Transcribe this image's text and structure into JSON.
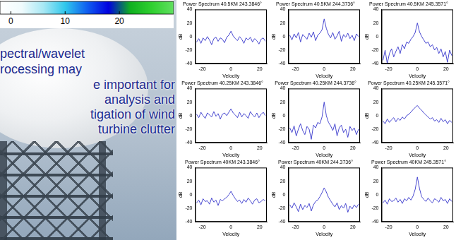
{
  "chart_data": [
    {
      "type": "line",
      "title": "Power Spectrum 40.5KM 243.3846°",
      "xlabel": "Velocity",
      "ylabel": "dB",
      "x": [
        -24,
        -22.5,
        -21,
        -19.5,
        -18,
        -16.5,
        -15,
        -13.5,
        -12,
        -10.5,
        -9,
        -7.5,
        -6,
        -4.5,
        -3,
        -1.5,
        0,
        1.5,
        3,
        4.5,
        6,
        7.5,
        9,
        10.5,
        12,
        13.5,
        15,
        16.5,
        18,
        19.5,
        21,
        22.5,
        24
      ],
      "values": [
        -8,
        -3,
        -10,
        -2,
        -6,
        0,
        -5,
        -12,
        -3,
        -1,
        -7,
        -2,
        -4,
        -9,
        -1,
        2,
        8,
        1,
        -3,
        -6,
        0,
        -4,
        -10,
        -2,
        -5,
        -1,
        -8,
        -3,
        -6,
        -11,
        -4,
        -2,
        -7
      ],
      "color": "#4848d0",
      "xlim": [
        -25,
        25
      ],
      "ylim": [
        -40,
        40
      ],
      "xticks": [
        -20,
        0,
        20
      ],
      "yticks": [
        -40,
        -20,
        0,
        20,
        40
      ],
      "grid": false
    },
    {
      "type": "line",
      "title": "Power Spectrum 40.5KM 244.3736°",
      "xlabel": "Velocity",
      "ylabel": "dB",
      "x": [
        -24,
        -22.5,
        -21,
        -19.5,
        -18,
        -16.5,
        -15,
        -13.5,
        -12,
        -10.5,
        -9,
        -7.5,
        -6,
        -4.5,
        -3,
        -1.5,
        0,
        1.5,
        3,
        4.5,
        6,
        7.5,
        9,
        10.5,
        12,
        13.5,
        15,
        16.5,
        18,
        19.5,
        21,
        22.5,
        24
      ],
      "values": [
        2,
        -5,
        4,
        -2,
        6,
        -8,
        3,
        0,
        -4,
        5,
        -1,
        7,
        -6,
        2,
        5,
        10,
        26,
        12,
        3,
        -2,
        6,
        -4,
        1,
        8,
        -7,
        3,
        -1,
        5,
        -3,
        2,
        -6,
        4,
        0
      ],
      "color": "#4848d0",
      "xlim": [
        -25,
        25
      ],
      "ylim": [
        -40,
        40
      ],
      "xticks": [
        -20,
        0,
        20
      ],
      "yticks": [
        -40,
        -20,
        0,
        20,
        40
      ],
      "grid": false
    },
    {
      "type": "line",
      "title": "Power Spectrum 40.5KM 245.3571°",
      "xlabel": "Velocity",
      "ylabel": "dB",
      "x": [
        -24,
        -22.5,
        -21,
        -19.5,
        -18,
        -16.5,
        -15,
        -13.5,
        -12,
        -10.5,
        -9,
        -7.5,
        -6,
        -4.5,
        -3,
        -1.5,
        0,
        1.5,
        3,
        4.5,
        6,
        7.5,
        9,
        10.5,
        12,
        13.5,
        15,
        16.5,
        18,
        19.5,
        21,
        22.5,
        24
      ],
      "values": [
        -35,
        -20,
        -40,
        -25,
        -18,
        -30,
        -22,
        -15,
        -25,
        -12,
        -18,
        -8,
        -10,
        -4,
        0,
        6,
        20,
        7,
        0,
        -5,
        -10,
        -8,
        -15,
        -12,
        -20,
        -16,
        -25,
        -18,
        -30,
        -22,
        -38,
        -20,
        -28
      ],
      "color": "#4848d0",
      "xlim": [
        -25,
        25
      ],
      "ylim": [
        -40,
        40
      ],
      "xticks": [
        -20,
        0,
        20
      ],
      "yticks": [
        -40,
        -20,
        0,
        20,
        40
      ],
      "grid": false
    },
    {
      "type": "line",
      "title": "Power Spectrum 40.25KM 243.3846°",
      "xlabel": "Velocity",
      "ylabel": "dB",
      "x": [
        -24,
        -22.5,
        -21,
        -19.5,
        -18,
        -16.5,
        -15,
        -13.5,
        -12,
        -10.5,
        -9,
        -7.5,
        -6,
        -4.5,
        -3,
        -1.5,
        0,
        1.5,
        3,
        4.5,
        6,
        7.5,
        9,
        10.5,
        12,
        13.5,
        15,
        16.5,
        18,
        19.5,
        21,
        22.5,
        24
      ],
      "values": [
        2,
        -3,
        5,
        0,
        -4,
        4,
        1,
        -2,
        6,
        -1,
        3,
        -5,
        2,
        4,
        0,
        5,
        10,
        4,
        1,
        -3,
        5,
        -2,
        3,
        0,
        -4,
        6,
        1,
        -2,
        4,
        -3,
        2,
        5,
        0
      ],
      "color": "#4848d0",
      "xlim": [
        -25,
        25
      ],
      "ylim": [
        -40,
        40
      ],
      "xticks": [
        -20,
        0,
        20
      ],
      "yticks": [
        -40,
        -20,
        0,
        20,
        40
      ],
      "grid": false
    },
    {
      "type": "line",
      "title": "Power Spectrum 40.25KM 244.3736°",
      "xlabel": "Velocity",
      "ylabel": "dB",
      "x": [
        -24,
        -22.5,
        -21,
        -19.5,
        -18,
        -16.5,
        -15,
        -13.5,
        -12,
        -10.5,
        -9,
        -7.5,
        -6,
        -4.5,
        -3,
        -1.5,
        0,
        1.5,
        3,
        4.5,
        6,
        7.5,
        9,
        10.5,
        12,
        13.5,
        15,
        16.5,
        18,
        19.5,
        21,
        22.5,
        24
      ],
      "values": [
        -18,
        -25,
        -15,
        -30,
        -20,
        -12,
        -22,
        -28,
        -16,
        -20,
        -35,
        -14,
        -18,
        -10,
        -12,
        -2,
        20,
        0,
        -10,
        -15,
        -22,
        -12,
        -30,
        -18,
        -14,
        -25,
        -20,
        -32,
        -16,
        -22,
        -18,
        -28,
        -20
      ],
      "color": "#4848d0",
      "xlim": [
        -25,
        25
      ],
      "ylim": [
        -40,
        40
      ],
      "xticks": [
        -20,
        0,
        20
      ],
      "yticks": [
        -40,
        -20,
        0,
        20,
        40
      ],
      "grid": false
    },
    {
      "type": "line",
      "title": "Power Spectrum 40.25KM 245.3571°",
      "xlabel": "Velocity",
      "ylabel": "dB",
      "x": [
        -24,
        -22.5,
        -21,
        -19.5,
        -18,
        -16.5,
        -15,
        -13.5,
        -12,
        -10.5,
        -9,
        -7.5,
        -6,
        -4.5,
        -3,
        -1.5,
        0,
        1.5,
        3,
        4.5,
        6,
        7.5,
        9,
        10.5,
        12,
        13.5,
        15,
        16.5,
        18,
        19.5,
        21,
        22.5,
        24
      ],
      "values": [
        -8,
        -12,
        -5,
        -10,
        -6,
        -3,
        -9,
        -4,
        -7,
        -2,
        -5,
        0,
        2,
        5,
        9,
        12,
        15,
        11,
        8,
        4,
        1,
        -2,
        -5,
        -3,
        -8,
        -6,
        -10,
        -4,
        -9,
        -6,
        -12,
        -7,
        -10
      ],
      "color": "#4848d0",
      "xlim": [
        -25,
        25
      ],
      "ylim": [
        -40,
        40
      ],
      "xticks": [
        -20,
        0,
        20
      ],
      "yticks": [
        -40,
        -20,
        0,
        20,
        40
      ],
      "grid": false
    },
    {
      "type": "line",
      "title": "Power Spectrum 40KM 243.3846°",
      "xlabel": "Velocity",
      "ylabel": "dB",
      "x": [
        -24,
        -22.5,
        -21,
        -19.5,
        -18,
        -16.5,
        -15,
        -13.5,
        -12,
        -10.5,
        -9,
        -7.5,
        -6,
        -4.5,
        -3,
        -1.5,
        0,
        1.5,
        3,
        4.5,
        6,
        7.5,
        9,
        10.5,
        12,
        13.5,
        15,
        16.5,
        18,
        19.5,
        21,
        22.5,
        24
      ],
      "values": [
        -12,
        -8,
        -15,
        -6,
        -10,
        -9,
        -14,
        -5,
        -11,
        -8,
        -16,
        -7,
        -9,
        -6,
        -4,
        0,
        5,
        -1,
        -6,
        -10,
        -8,
        -13,
        -7,
        -11,
        -5,
        -9,
        -14,
        -8,
        -6,
        -12,
        -10,
        -7,
        -9
      ],
      "color": "#4848d0",
      "xlim": [
        -25,
        25
      ],
      "ylim": [
        -40,
        40
      ],
      "xticks": [
        -20,
        0,
        20
      ],
      "yticks": [
        -40,
        -20,
        0,
        20,
        40
      ],
      "grid": false
    },
    {
      "type": "line",
      "title": "Power Spectrum 40KM 244.3736°",
      "xlabel": "Velocity",
      "ylabel": "dB",
      "x": [
        -24,
        -22.5,
        -21,
        -19.5,
        -18,
        -16.5,
        -15,
        -13.5,
        -12,
        -10.5,
        -9,
        -7.5,
        -6,
        -4.5,
        -3,
        -1.5,
        0,
        1.5,
        3,
        4.5,
        6,
        7.5,
        9,
        10.5,
        12,
        13.5,
        15,
        16.5,
        18,
        19.5,
        21,
        22.5,
        24
      ],
      "values": [
        -15,
        -20,
        -12,
        -18,
        -25,
        -14,
        -22,
        -16,
        -19,
        -13,
        -24,
        -15,
        -10,
        -8,
        -3,
        3,
        10,
        4,
        -4,
        -9,
        -14,
        -18,
        -12,
        -22,
        -16,
        -20,
        -13,
        -26,
        -17,
        -21,
        -15,
        -19,
        -14
      ],
      "color": "#4848d0",
      "xlim": [
        -25,
        25
      ],
      "ylim": [
        -40,
        40
      ],
      "xticks": [
        -20,
        0,
        20
      ],
      "yticks": [
        -40,
        -20,
        0,
        20,
        40
      ],
      "grid": false
    },
    {
      "type": "line",
      "title": "Power Spectrum 40KM 245.3571°",
      "xlabel": "Velocity",
      "ylabel": "dB",
      "x": [
        -24,
        -22.5,
        -21,
        -19.5,
        -18,
        -16.5,
        -15,
        -13.5,
        -12,
        -10.5,
        -9,
        -7.5,
        -6,
        -4.5,
        -3,
        -1.5,
        0,
        1.5,
        3,
        4.5,
        6,
        7.5,
        9,
        10.5,
        12,
        13.5,
        15,
        16.5,
        18,
        19.5,
        21,
        22.5,
        24
      ],
      "values": [
        -12,
        -8,
        -14,
        -6,
        -10,
        -9,
        -5,
        -11,
        -7,
        -13,
        -6,
        -9,
        -4,
        -8,
        -2,
        8,
        26,
        9,
        -3,
        -7,
        -10,
        -5,
        -9,
        -12,
        -6,
        -8,
        -11,
        -4,
        -9,
        -7,
        -13,
        -6,
        -10
      ],
      "color": "#4848d0",
      "xlim": [
        -25,
        25
      ],
      "ylim": [
        -40,
        40
      ],
      "xticks": [
        -20,
        0,
        20
      ],
      "yticks": [
        -40,
        -20,
        0,
        20,
        40
      ],
      "grid": false
    }
  ],
  "colorbar": {
    "range": [
      -2,
      30
    ],
    "ticks": [
      0,
      10,
      20
    ],
    "colors": [
      "#ffffff",
      "#f0fbfd",
      "#a8e8f4",
      "#30c8ec",
      "#1060f0",
      "#0000e0",
      "#10b020",
      "#30d030",
      "#60e060"
    ]
  },
  "text_lines": [
    "pectral/wavelet",
    "rocessing may",
    "e important for",
    "analysis and",
    "tigation of wind",
    "turbine clutter"
  ]
}
